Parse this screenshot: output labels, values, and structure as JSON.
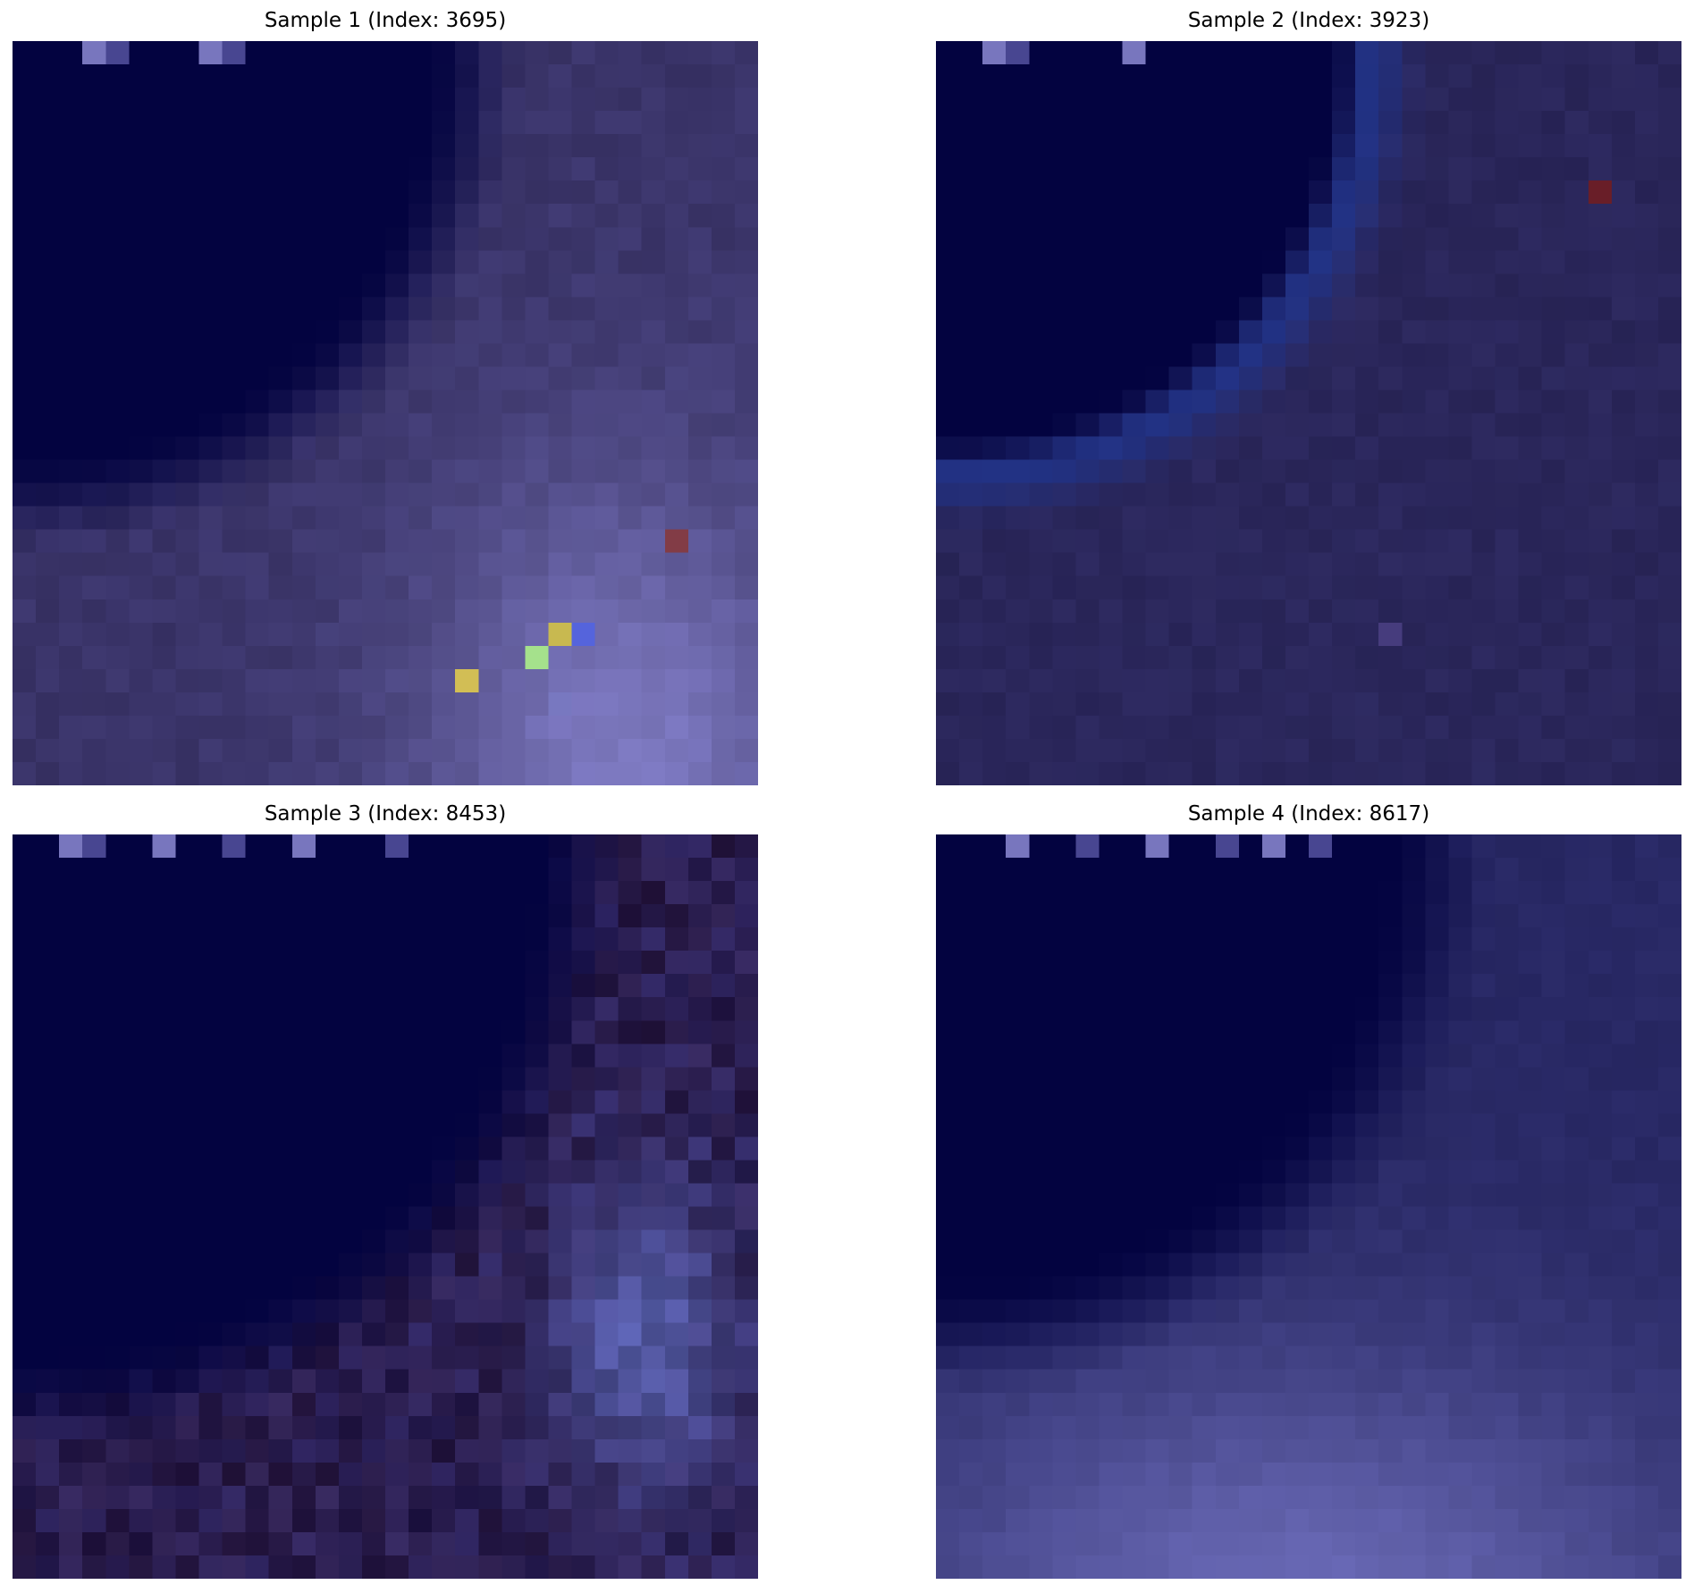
{
  "figure": {
    "panels": [
      {
        "title": "Sample 1 (Index: 3695)"
      },
      {
        "title": "Sample 2 (Index: 3923)"
      },
      {
        "title": "Sample 3 (Index: 8453)"
      },
      {
        "title": "Sample 4 (Index: 8617)"
      }
    ]
  }
}
